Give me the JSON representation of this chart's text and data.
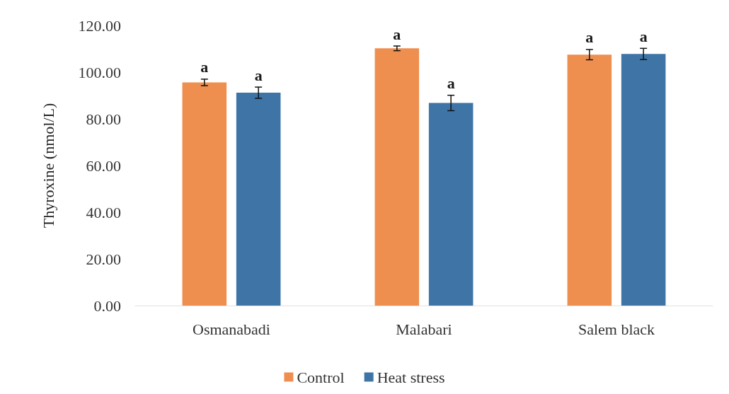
{
  "chart_data": {
    "type": "bar",
    "ylabel": "Thyroxine (nmol/L)",
    "categories": [
      "Osmanabadi",
      "Malabari",
      "Salem black"
    ],
    "series": [
      {
        "name": "Control",
        "color": "#ef8f4f",
        "values": [
          95.6,
          110.2,
          107.5
        ],
        "errors": [
          1.4,
          1.0,
          2.2
        ],
        "value_labels": [
          "a",
          "a",
          "a"
        ]
      },
      {
        "name": "Heat stress",
        "color": "#3e75a6",
        "values": [
          91.2,
          86.8,
          107.8
        ],
        "errors": [
          2.4,
          3.3,
          2.4
        ],
        "value_labels": [
          "a",
          "a",
          "a"
        ]
      }
    ],
    "ylim": [
      0,
      120
    ],
    "yticks": [
      {
        "value": 0,
        "label": "0.00"
      },
      {
        "value": 20,
        "label": "20.00"
      },
      {
        "value": 40,
        "label": "40.00"
      },
      {
        "value": 60,
        "label": "60.00"
      },
      {
        "value": 80,
        "label": "80.00"
      },
      {
        "value": 100,
        "label": "100.00"
      },
      {
        "value": 120,
        "label": "120.00"
      }
    ],
    "legend": "bottom"
  }
}
